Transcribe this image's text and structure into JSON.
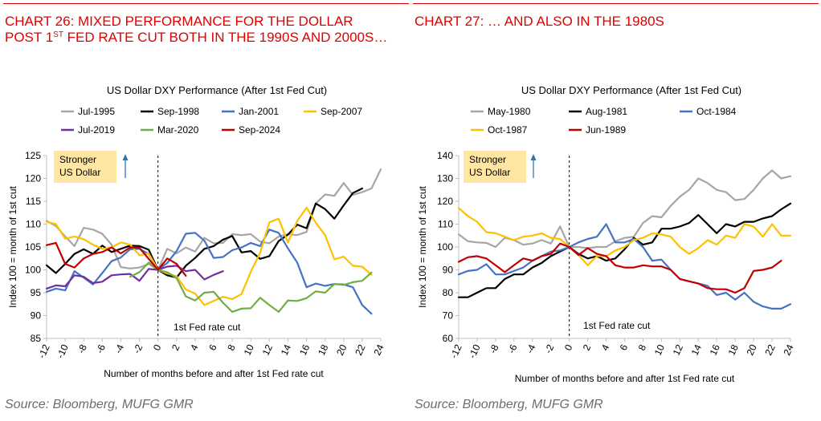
{
  "charts": [
    {
      "heading_pre": "CHART 26: MIXED PERFORMANCE FOR THE DOLLAR POST 1",
      "heading_sup": "ST",
      "heading_post": " FED RATE CUT BOTH IN THE 1990S AND 2000S…",
      "source": "Source: Bloomberg, MUFG GMR"
    },
    {
      "heading_pre": "CHART 27: … AND ALSO IN THE 1980S",
      "heading_sup": "",
      "heading_post": "",
      "source": "Source: Bloomberg, MUFG GMR"
    }
  ],
  "chart_data": [
    {
      "type": "line",
      "title": "US Dollar DXY Performance (After 1st Fed Cut)",
      "xlabel": "Number of months before and after 1st Fed rate cut",
      "ylabel": "Index 100 = month of 1st cut",
      "xlim": [
        -12,
        24
      ],
      "ylim": [
        85,
        125
      ],
      "xticks": [
        -12,
        -10,
        -8,
        -6,
        -4,
        -2,
        0,
        2,
        4,
        6,
        8,
        10,
        12,
        14,
        16,
        18,
        20,
        22,
        24
      ],
      "yticks": [
        85,
        90,
        95,
        100,
        105,
        110,
        115,
        120,
        125
      ],
      "annotation": [
        "Stronger",
        "US Dollar"
      ],
      "vline_label": "1st Fed rate cut",
      "legend_position": "top",
      "series": [
        {
          "name": "Jul-1995",
          "color": "#a6a6a6",
          "x_start": -12,
          "values": [
            110.7,
            109.6,
            107.3,
            105.2,
            109.2,
            108.8,
            107.9,
            105.5,
            100.6,
            100.3,
            100.5,
            101.3,
            100.0,
            104.6,
            103.6,
            104.9,
            104.0,
            107.0,
            105.8,
            105.9,
            107.8,
            107.6,
            107.8,
            106.2,
            105.8,
            107.3,
            107.8,
            107.6,
            108.3,
            114.5,
            116.5,
            116.2,
            119.0,
            116.4,
            117.0,
            117.8,
            122.0
          ]
        },
        {
          "name": "Sep-1998",
          "color": "#000000",
          "x_start": -12,
          "values": [
            101.0,
            99.3,
            101.3,
            103.5,
            104.5,
            103.5,
            105.3,
            103.9,
            104.6,
            105.3,
            105.2,
            104.4,
            100.0,
            98.8,
            98.3,
            100.9,
            102.6,
            104.6,
            105.2,
            106.6,
            107.4,
            103.8,
            104.1,
            102.4,
            103.0,
            106.3,
            107.7,
            109.9,
            109.1,
            114.5,
            113.3,
            111.2,
            114.1,
            116.8,
            117.8
          ]
        },
        {
          "name": "Jan-2001",
          "color": "#4472c4",
          "x_start": -12,
          "values": [
            95.2,
            95.9,
            95.5,
            99.7,
            98.3,
            96.8,
            99.3,
            101.9,
            102.7,
            104.5,
            104.6,
            103.5,
            100.0,
            101.5,
            104.1,
            107.9,
            108.1,
            106.4,
            102.6,
            102.8,
            104.3,
            104.9,
            105.9,
            105.2,
            108.8,
            108.1,
            104.7,
            101.6,
            96.2,
            97.0,
            96.5,
            96.9,
            96.8,
            96.2,
            92.3,
            90.4
          ]
        },
        {
          "name": "Sep-2007",
          "color": "#ffc000",
          "x_start": -12,
          "values": [
            110.5,
            110.0,
            106.8,
            107.3,
            106.7,
            105.5,
            104.6,
            104.9,
            106.0,
            105.5,
            103.2,
            103.6,
            100.0,
            99.2,
            98.6,
            95.7,
            94.8,
            92.3,
            93.2,
            94.1,
            93.6,
            94.7,
            99.6,
            103.7,
            110.4,
            111.2,
            106.0,
            110.7,
            113.6,
            110.3,
            107.6,
            102.3,
            102.9,
            100.9,
            100.7,
            98.9
          ]
        },
        {
          "name": "Jul-2019",
          "color": "#7030a0",
          "x_start": -12,
          "values": [
            95.9,
            96.6,
            96.4,
            98.8,
            98.5,
            97.1,
            97.4,
            98.8,
            99.0,
            99.1,
            97.6,
            100.2,
            100.0,
            100.7,
            100.9,
            99.7,
            100.0,
            97.9,
            98.9,
            99.7
          ]
        },
        {
          "name": "Mar-2020",
          "color": "#70ad47",
          "x_start": -3,
          "values": [
            98.5,
            99.5,
            101.6,
            100.0,
            99.5,
            98.2,
            94.2,
            93.3,
            95.0,
            95.2,
            92.8,
            90.8,
            91.5,
            91.6,
            93.9,
            92.3,
            90.8,
            93.3,
            93.2,
            93.8,
            95.3,
            95.0,
            96.9,
            96.7,
            97.3,
            97.6,
            99.4
          ]
        },
        {
          "name": "Sep-2024",
          "color": "#c00000",
          "x_start": -12,
          "values": [
            105.4,
            105.9,
            101.3,
            100.5,
            102.5,
            103.5,
            103.9,
            104.9,
            103.6,
            104.9,
            104.8,
            102.4,
            100.0,
            102.5,
            101.3,
            98.7
          ]
        }
      ]
    },
    {
      "type": "line",
      "title": "US Dollar DXY Performance (After 1st Fed Cut)",
      "xlabel": "Number of months before and after 1st Fed rate cut",
      "ylabel": "Index 100 = month of 1st cut",
      "xlim": [
        -12,
        24
      ],
      "ylim": [
        60,
        140
      ],
      "xticks": [
        -12,
        -10,
        -8,
        -6,
        -4,
        -2,
        0,
        2,
        4,
        6,
        8,
        10,
        12,
        14,
        16,
        18,
        20,
        22,
        24
      ],
      "yticks": [
        60,
        70,
        80,
        90,
        100,
        110,
        120,
        130,
        140
      ],
      "annotation": [
        "Stronger",
        "US Dollar"
      ],
      "vline_label": "1st Fed rate cut",
      "legend_position": "top",
      "series": [
        {
          "name": "May-1980",
          "color": "#a6a6a6",
          "x_start": -12,
          "values": [
            105.5,
            102.5,
            102.0,
            101.8,
            100.0,
            104.0,
            103.0,
            101.0,
            101.5,
            103.0,
            101.5,
            109.0,
            100.0,
            100.0,
            99.5,
            100.0,
            100.0,
            102.5,
            104.0,
            104.5,
            110.5,
            113.5,
            113.0,
            118.0,
            122.0,
            125.0,
            130.0,
            128.0,
            125.0,
            124.0,
            120.5,
            121.0,
            125.0,
            130.0,
            133.5,
            130.0,
            131.0
          ]
        },
        {
          "name": "Aug-1981",
          "color": "#000000",
          "x_start": -12,
          "values": [
            78.0,
            78.0,
            80.0,
            82.0,
            82.0,
            86.0,
            88.0,
            88.0,
            91.0,
            93.0,
            96.0,
            98.0,
            100.0,
            97.0,
            95.0,
            96.0,
            94.0,
            95.0,
            99.0,
            104.0,
            101.0,
            102.0,
            108.0,
            108.0,
            109.0,
            110.5,
            114.0,
            110.0,
            106.0,
            110.0,
            109.0,
            111.0,
            111.0,
            112.5,
            113.5,
            116.5,
            119.0
          ]
        },
        {
          "name": "Oct-1984",
          "color": "#4472c4",
          "x_start": -12,
          "values": [
            88.0,
            89.5,
            90.0,
            92.5,
            88.0,
            88.0,
            89.5,
            91.0,
            94.0,
            96.0,
            98.0,
            98.5,
            100.0,
            102.0,
            103.5,
            104.5,
            110.0,
            102.0,
            102.0,
            103.5,
            100.0,
            94.0,
            94.5,
            90.0,
            86.0,
            85.0,
            84.0,
            83.0,
            79.0,
            80.0,
            77.0,
            80.0,
            76.0,
            74.0,
            73.0,
            73.0,
            75.0
          ]
        },
        {
          "name": "Oct-1987",
          "color": "#ffc000",
          "x_start": -12,
          "values": [
            117.0,
            113.5,
            111.0,
            106.5,
            106.0,
            104.5,
            103.0,
            104.5,
            105.0,
            106.0,
            104.0,
            103.5,
            100.0,
            96.5,
            92.0,
            96.0,
            96.0,
            98.5,
            100.0,
            103.0,
            104.0,
            106.0,
            105.5,
            104.5,
            100.0,
            97.0,
            99.5,
            103.0,
            101.0,
            105.0,
            104.0,
            110.0,
            109.0,
            104.5,
            110.0,
            105.0,
            105.0
          ]
        },
        {
          "name": "Jun-1989",
          "color": "#c00000",
          "x_start": -12,
          "values": [
            93.5,
            95.5,
            96.0,
            95.0,
            92.0,
            89.0,
            92.0,
            95.0,
            94.0,
            96.0,
            97.0,
            101.5,
            100.0,
            96.5,
            99.5,
            97.0,
            96.0,
            92.0,
            91.0,
            91.0,
            92.0,
            91.5,
            91.5,
            90.0,
            86.0,
            85.0,
            84.0,
            82.0,
            81.5,
            81.5,
            80.0,
            82.0,
            89.5,
            90.0,
            91.0,
            94.0
          ]
        }
      ]
    }
  ]
}
